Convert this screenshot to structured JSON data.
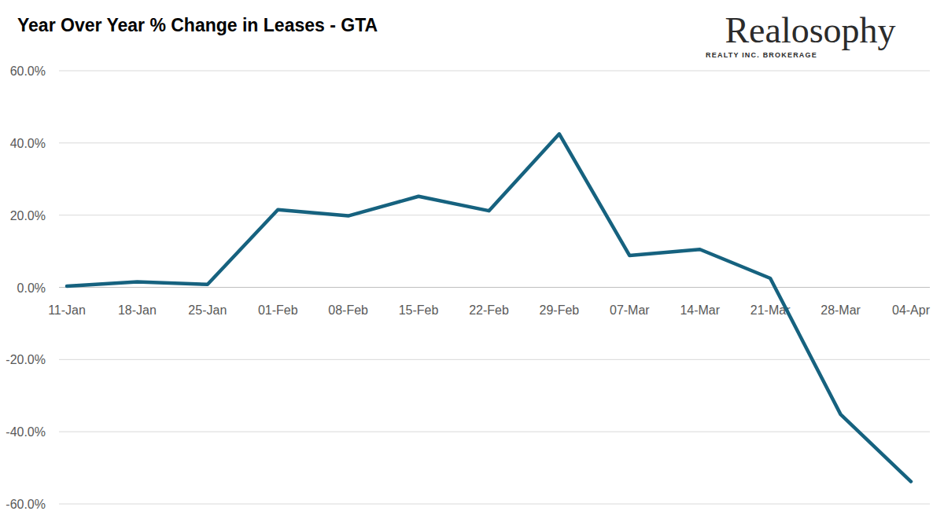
{
  "chart_data": {
    "type": "line",
    "title": "Year Over Year % Change in Leases - GTA",
    "annotations": [
      "Realosophy",
      "REALTY INC. BROKERAGE"
    ],
    "categories": [
      "11-Jan",
      "18-Jan",
      "25-Jan",
      "01-Feb",
      "08-Feb",
      "15-Feb",
      "22-Feb",
      "29-Feb",
      "07-Mar",
      "14-Mar",
      "21-Mar",
      "28-Mar",
      "04-Apr"
    ],
    "values": [
      0.3,
      1.5,
      0.8,
      21.5,
      19.8,
      25.2,
      21.2,
      42.5,
      8.8,
      10.5,
      2.5,
      -35.2,
      -53.8
    ],
    "color": "#16627f",
    "ylim": [
      -60,
      60
    ],
    "yticks": [
      {
        "value": -60,
        "label": "-60.0%"
      },
      {
        "value": -40,
        "label": "-40.0%"
      },
      {
        "value": -20,
        "label": "-20.0%"
      },
      {
        "value": 0,
        "label": "0.0%"
      },
      {
        "value": 20,
        "label": "20.0%"
      },
      {
        "value": 40,
        "label": "40.0%"
      },
      {
        "value": 60,
        "label": "60.0%"
      }
    ],
    "grid": true
  }
}
